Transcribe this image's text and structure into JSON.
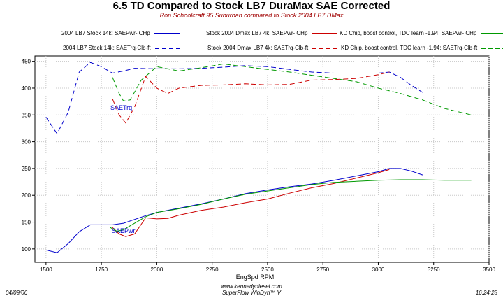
{
  "title": "6.5 TD Compared to Stock LB7 DuraMax SAE Corrected",
  "subtitle": "Ron Schoolcraft 95 Suburban compared to Stock 2004 LB7 DMax",
  "legend": [
    {
      "label": "2004 LB7 Stock 14k: SAEPwr- CHp",
      "color": "#0000cc",
      "dash": false
    },
    {
      "label": "Stock 2004 Dmax LB7 4k: SAEPwr- CHp",
      "color": "#cc0000",
      "dash": false
    },
    {
      "label": "KD Chip, boost control, TDC learn -1.94: SAEPwr- CHp",
      "color": "#009900",
      "dash": false
    },
    {
      "label": "2004 LB7 Stock 14k: SAETrq-Clb-ft",
      "color": "#0000cc",
      "dash": true
    },
    {
      "label": "Stock 2004 Dmax LB7 4k: SAETrq-Clb-ft",
      "color": "#cc0000",
      "dash": true
    },
    {
      "label": "KD Chip, boost control, TDC learn -1.94: SAETrq-Clb-ft",
      "color": "#009900",
      "dash": true
    }
  ],
  "annotations": {
    "trq": "SAETrq",
    "pwr": "SAEPwr"
  },
  "footer": {
    "date": "04/09/06",
    "url": "www.kennedydiesel.com",
    "software": "SuperFlow WinDyn™ V",
    "time": "16:24:28"
  },
  "chart_data": {
    "type": "line",
    "xlabel": "EngSpd RPM",
    "ylabel": "",
    "xlim": [
      1450,
      3500
    ],
    "ylim": [
      75,
      460
    ],
    "xticks": [
      1500,
      1750,
      2000,
      2250,
      2500,
      2750,
      3000,
      3250,
      3500
    ],
    "yticks": [
      100,
      150,
      200,
      250,
      300,
      350,
      400,
      450
    ],
    "grid": true,
    "series": [
      {
        "name": "2004 LB7 Stock 14k: SAEPwr- CHp",
        "color": "#0000cc",
        "dash": false,
        "x": [
          1500,
          1550,
          1600,
          1650,
          1700,
          1750,
          1800,
          1850,
          1900,
          1950,
          2000,
          2100,
          2200,
          2300,
          2400,
          2500,
          2600,
          2700,
          2800,
          2900,
          3000,
          3050,
          3100,
          3150,
          3200
        ],
        "y": [
          98,
          93,
          110,
          132,
          145,
          145,
          145,
          148,
          155,
          162,
          168,
          176,
          184,
          193,
          203,
          210,
          216,
          221,
          228,
          236,
          244,
          250,
          250,
          245,
          238
        ]
      },
      {
        "name": "Stock 2004 Dmax LB7 4k: SAEPwr- CHp",
        "color": "#cc0000",
        "dash": false,
        "x": [
          1800,
          1830,
          1860,
          1900,
          1950,
          2000,
          2050,
          2100,
          2200,
          2300,
          2400,
          2500,
          2600,
          2700,
          2800,
          2900,
          3000,
          3050
        ],
        "y": [
          140,
          128,
          123,
          128,
          158,
          156,
          157,
          163,
          172,
          178,
          186,
          193,
          204,
          214,
          222,
          232,
          242,
          248
        ]
      },
      {
        "name": "KD Chip, boost control, TDC learn -1.94: SAEPwr- CHp",
        "color": "#009900",
        "dash": false,
        "x": [
          1790,
          1820,
          1850,
          1900,
          1950,
          2000,
          2100,
          2200,
          2300,
          2400,
          2500,
          2600,
          2700,
          2800,
          2900,
          3000,
          3100,
          3200,
          3300,
          3420
        ],
        "y": [
          140,
          133,
          136,
          148,
          160,
          168,
          175,
          183,
          193,
          202,
          208,
          214,
          220,
          224,
          226,
          228,
          229,
          229,
          228,
          228
        ]
      },
      {
        "name": "2004 LB7 Stock 14k: SAETrq-Clb-ft",
        "color": "#0000cc",
        "dash": true,
        "x": [
          1500,
          1550,
          1600,
          1650,
          1700,
          1750,
          1800,
          1850,
          1900,
          2000,
          2100,
          2200,
          2300,
          2400,
          2500,
          2600,
          2700,
          2800,
          2900,
          3000,
          3050,
          3100,
          3150,
          3200
        ],
        "y": [
          346,
          315,
          355,
          430,
          448,
          440,
          428,
          432,
          437,
          436,
          436,
          437,
          439,
          442,
          440,
          435,
          430,
          428,
          428,
          428,
          430,
          420,
          405,
          392
        ]
      },
      {
        "name": "Stock 2004 Dmax LB7 4k: SAETrq-Clb-ft",
        "color": "#cc0000",
        "dash": true,
        "x": [
          1800,
          1830,
          1860,
          1900,
          1950,
          2000,
          2050,
          2100,
          2200,
          2300,
          2400,
          2500,
          2600,
          2700,
          2800,
          2900,
          3000,
          3050
        ],
        "y": [
          380,
          350,
          335,
          365,
          422,
          400,
          390,
          400,
          405,
          406,
          408,
          406,
          407,
          415,
          416,
          418,
          425,
          430
        ]
      },
      {
        "name": "KD Chip, boost control, TDC learn -1.94: SAETrq-Clb-ft",
        "color": "#009900",
        "dash": true,
        "x": [
          1800,
          1830,
          1850,
          1880,
          1930,
          2000,
          2100,
          2200,
          2300,
          2400,
          2500,
          2600,
          2700,
          2800,
          2900,
          3000,
          3100,
          3200,
          3300,
          3420
        ],
        "y": [
          420,
          390,
          376,
          378,
          415,
          440,
          432,
          438,
          445,
          440,
          435,
          430,
          424,
          418,
          412,
          400,
          390,
          378,
          362,
          350
        ]
      }
    ]
  }
}
